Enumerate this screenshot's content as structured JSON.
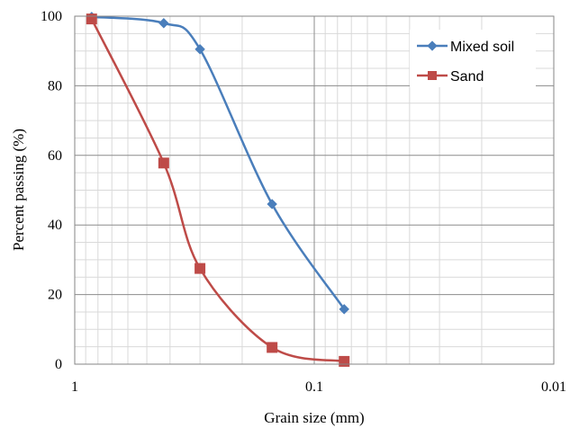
{
  "chart_data": {
    "type": "line",
    "title": "",
    "xlabel": "Grain size (mm)",
    "ylabel": "Percent passing (%)",
    "x_scale": "log",
    "x_reversed": true,
    "xlim": [
      1,
      0.01
    ],
    "ylim": [
      0,
      100
    ],
    "x_ticks": [
      1,
      0.1,
      0.01
    ],
    "x_tick_labels": [
      "1",
      "0.1",
      "0.01"
    ],
    "y_ticks": [
      0,
      20,
      40,
      60,
      80,
      100
    ],
    "y_tick_labels": [
      "0",
      "20",
      "40",
      "60",
      "80",
      "100"
    ],
    "grid": true,
    "legend_position": "top-right",
    "series": [
      {
        "name": "Mixed soil",
        "color": "#4a7ebb",
        "marker": "diamond",
        "x": [
          0.85,
          0.425,
          0.3,
          0.15,
          0.075
        ],
        "y": [
          99.8,
          98,
          90.5,
          46,
          15.8
        ]
      },
      {
        "name": "Sand",
        "color": "#be4b48",
        "marker": "square",
        "x": [
          0.85,
          0.425,
          0.3,
          0.15,
          0.075
        ],
        "y": [
          99.2,
          57.8,
          27.5,
          4.8,
          0.8
        ]
      }
    ]
  }
}
